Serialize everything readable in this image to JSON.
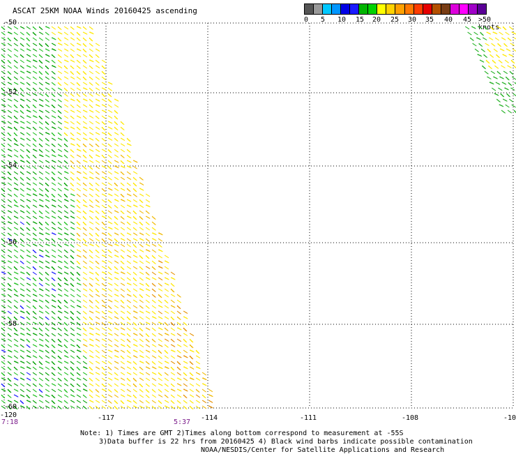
{
  "title": "ASCAT 25KM NOAA Winds 20160425 ascending",
  "legend": {
    "colors": [
      "#555555",
      "#999999",
      "#00c8ff",
      "#0096ff",
      "#0000e6",
      "#1a1aff",
      "#00b400",
      "#00d200",
      "#ffff00",
      "#ffd200",
      "#ffa000",
      "#ff7800",
      "#ff3c00",
      "#e60000",
      "#b45000",
      "#783c14",
      "#dc00dc",
      "#ff00ff",
      "#a000c8",
      "#5a0096"
    ],
    "labels": [
      "0",
      "5",
      "10",
      "15",
      "20",
      "25",
      "30",
      "35",
      "40",
      "45",
      ">50 knots"
    ]
  },
  "axes": {
    "lat_labels": [
      "-50",
      "-52",
      "-54",
      "-56",
      "-58",
      "-60"
    ],
    "lon_labels": [
      "-120",
      "-117",
      "-114",
      "-111",
      "-108",
      "-10"
    ]
  },
  "times": [
    "7:18",
    "5:37"
  ],
  "notes": {
    "line1": "Note: 1) Times are GMT 2)Times along bottom correspond to measurement at -55S",
    "line2": "3)Data buffer is 22 hrs from 20160425 4) Black wind barbs indicate possible contamination",
    "line3": "NOAA/NESDIS/Center for Satellite Applications and Research"
  }
}
